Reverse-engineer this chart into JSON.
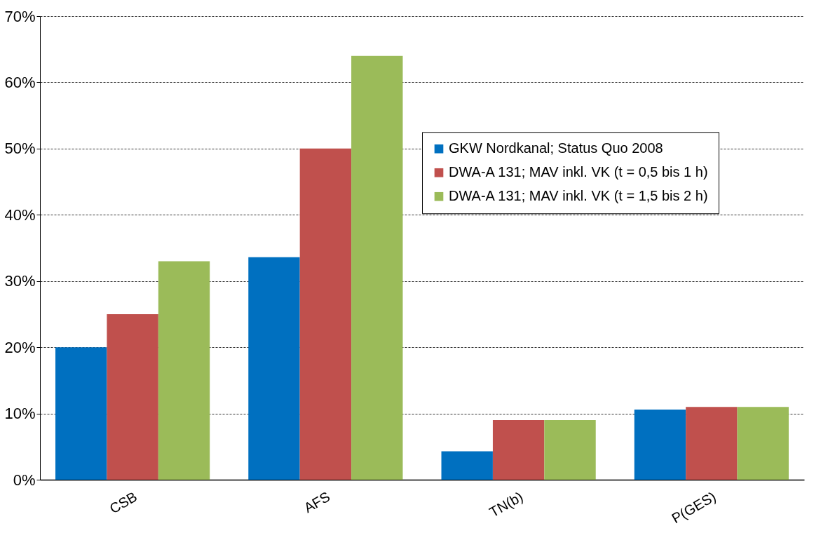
{
  "chart_data": {
    "type": "bar",
    "categories": [
      "CSB",
      "AFS",
      "TN(b)",
      "P(GES)"
    ],
    "series": [
      {
        "name": "GKW Nordkanal; Status Quo 2008",
        "color": "#0070c0",
        "values": [
          20,
          33.6,
          4.3,
          10.6
        ]
      },
      {
        "name": "DWA-A 131; MAV inkl. VK (t = 0,5 bis 1 h)",
        "color": "#c0504d",
        "values": [
          25,
          50,
          9,
          11
        ]
      },
      {
        "name": "DWA-A 131; MAV inkl. VK (t = 1,5 bis 2 h)",
        "color": "#9bbb59",
        "values": [
          33,
          64,
          9,
          11
        ]
      }
    ],
    "ylim": [
      0,
      70
    ],
    "yticks": [
      {
        "value": 0,
        "label": "0%"
      },
      {
        "value": 10,
        "label": "10%"
      },
      {
        "value": 20,
        "label": "20%"
      },
      {
        "value": 30,
        "label": "30%"
      },
      {
        "value": 40,
        "label": "40%"
      },
      {
        "value": 50,
        "label": "50%"
      },
      {
        "value": 60,
        "label": "60%"
      },
      {
        "value": 70,
        "label": "70%"
      }
    ],
    "grid": "y",
    "legend": "right"
  }
}
